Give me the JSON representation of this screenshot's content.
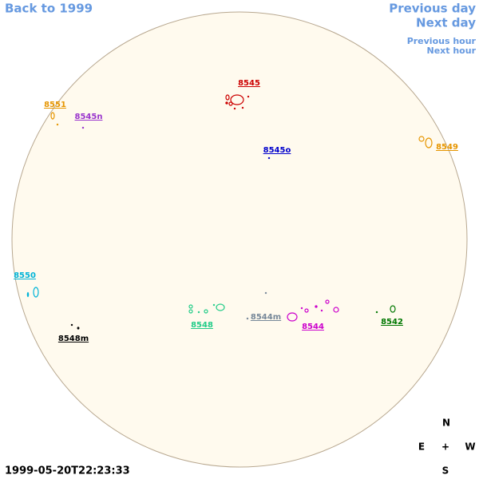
{
  "nav": {
    "back": "Back to 1999",
    "previous_day": "Previous day",
    "next_day": "Next day",
    "previous_hour": "Previous hour",
    "next_hour": "Next hour"
  },
  "regions": [
    {
      "label": "8545",
      "color": "#cc0000"
    },
    {
      "label": "8551",
      "color": "#e69500"
    },
    {
      "label": "8545n",
      "color": "#9933cc"
    },
    {
      "label": "8545o",
      "color": "#0000cc"
    },
    {
      "label": "8549",
      "color": "#e69500"
    },
    {
      "label": "8550",
      "color": "#00b4d8"
    },
    {
      "label": "8548",
      "color": "#22cc88"
    },
    {
      "label": "8544m",
      "color": "#778899"
    },
    {
      "label": "8544",
      "color": "#cc00cc"
    },
    {
      "label": "8542",
      "color": "#007700"
    },
    {
      "label": "8548m",
      "color": "#000000"
    }
  ],
  "timestamp": "1999-05-20T22:23:33",
  "compass": {
    "north": "N",
    "east": "E",
    "center": "+",
    "west": "W",
    "south": "S"
  }
}
